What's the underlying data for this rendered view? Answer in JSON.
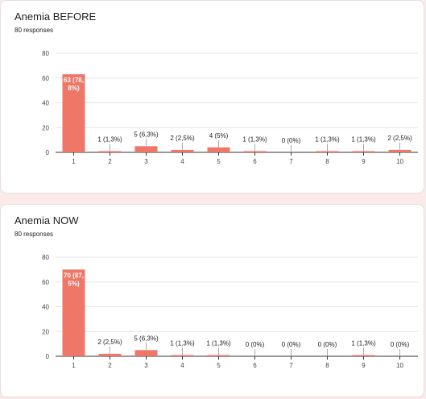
{
  "accent": "#ee7768",
  "chart_data": [
    {
      "type": "bar",
      "title": "Anemia BEFORE",
      "subtitle": "80 responses",
      "categories": [
        "1",
        "2",
        "3",
        "4",
        "5",
        "6",
        "7",
        "8",
        "9",
        "10"
      ],
      "values": [
        63,
        1,
        5,
        2,
        4,
        1,
        0,
        1,
        1,
        2
      ],
      "labels": [
        "63 (78,\n8%)",
        "1 (1,3%)",
        "5 (6,3%)",
        "2 (2,5%)",
        "4 (5%)",
        "1 (1,3%)",
        "0 (0%)",
        "1 (1,3%)",
        "1 (1,3%)",
        "2 (2,5%)"
      ],
      "yticks": [
        0,
        20,
        40,
        60,
        80
      ],
      "ylim": [
        0,
        80
      ],
      "grid": true,
      "color": "#ee7768"
    },
    {
      "type": "bar",
      "title": "Anemia NOW",
      "subtitle": "80 responses",
      "categories": [
        "1",
        "2",
        "3",
        "4",
        "5",
        "6",
        "7",
        "8",
        "9",
        "10"
      ],
      "values": [
        70,
        2,
        5,
        1,
        1,
        0,
        0,
        0,
        1,
        0
      ],
      "labels": [
        "70 (87,\n5%)",
        "2 (2,5%)",
        "5 (6,3%)",
        "1 (1,3%)",
        "1 (1,3%)",
        "0 (0%)",
        "0 (0%)",
        "0 (0%)",
        "1 (1,3%)",
        "0 (0%)"
      ],
      "yticks": [
        0,
        20,
        40,
        60,
        80
      ],
      "ylim": [
        0,
        80
      ],
      "grid": true,
      "color": "#ee7768"
    }
  ]
}
